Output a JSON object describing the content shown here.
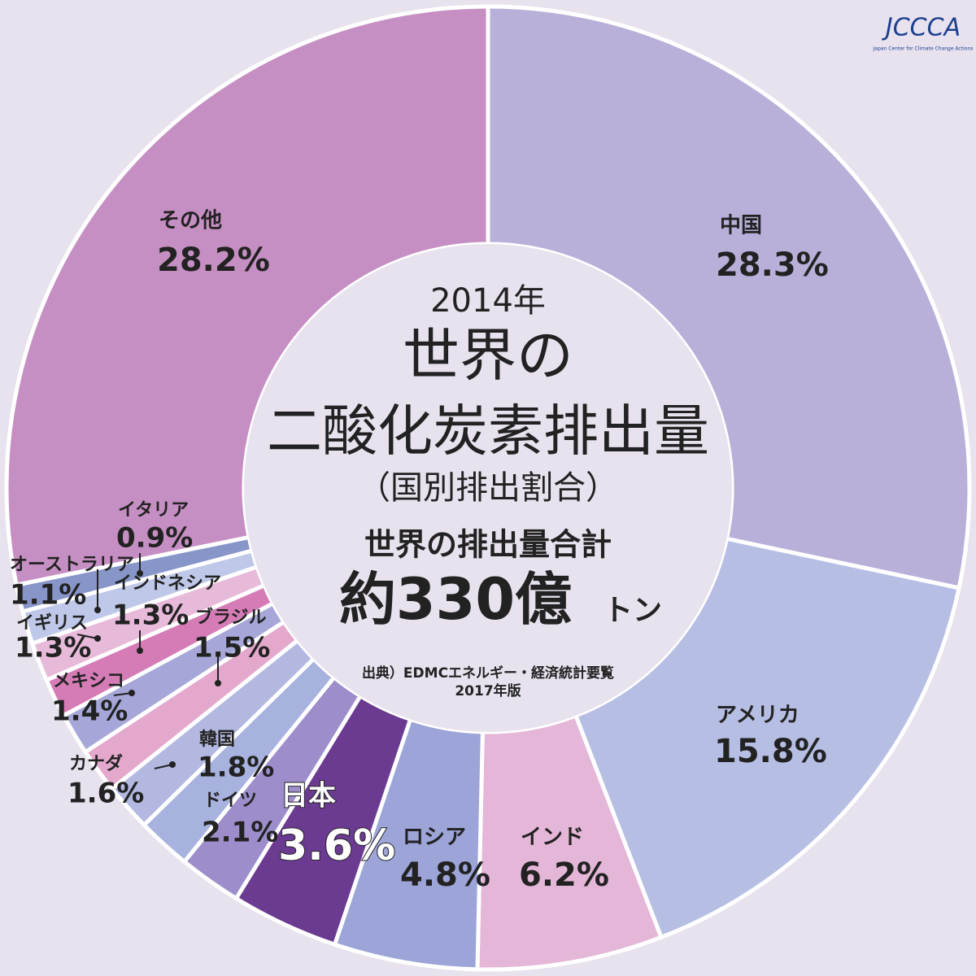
{
  "chart_data": {
    "type": "pie",
    "title": "世界の",
    "title_line2": "二酸化炭素排出量",
    "year": "2014年",
    "subtitle": "（国別排出割合）",
    "total_heading": "世界の排出量合計",
    "total_value": "約330億",
    "total_unit": "トン",
    "source": "出典）EDMCエネルギー・経済統計要覧",
    "source_edition": "2017年版",
    "logo": "JCCCA",
    "logo_caption": "Japan Center for Climate Change Actions",
    "categories": [
      "中国",
      "アメリカ",
      "インド",
      "ロシア",
      "日本",
      "ドイツ",
      "韓国",
      "カナダ",
      "ブラジル",
      "メキシコ",
      "インドネシア",
      "イギリス",
      "オーストラリア",
      "イタリア",
      "その他"
    ],
    "values": [
      28.3,
      15.8,
      6.2,
      4.8,
      3.6,
      2.1,
      1.8,
      1.6,
      1.5,
      1.4,
      1.3,
      1.3,
      1.1,
      0.9,
      28.2
    ],
    "value_labels": [
      "28.3%",
      "15.8%",
      "6.2%",
      "4.8%",
      "3.6%",
      "2.1%",
      "1.8%",
      "1.6%",
      "1.5%",
      "1.4%",
      "1.3%",
      "1.3%",
      "1.1%",
      "0.9%",
      "28.2%"
    ],
    "colors": [
      "#b9b0d9",
      "#b6bee4",
      "#e4b6d8",
      "#9ca4d8",
      "#6b3a91",
      "#9d8ecb",
      "#a7b2de",
      "#b3b8e1",
      "#e4a8cc",
      "#a6a7d8",
      "#d57cb7",
      "#e8bada",
      "#bfc8e9",
      "#8795c9",
      "#c68fc3"
    ]
  }
}
